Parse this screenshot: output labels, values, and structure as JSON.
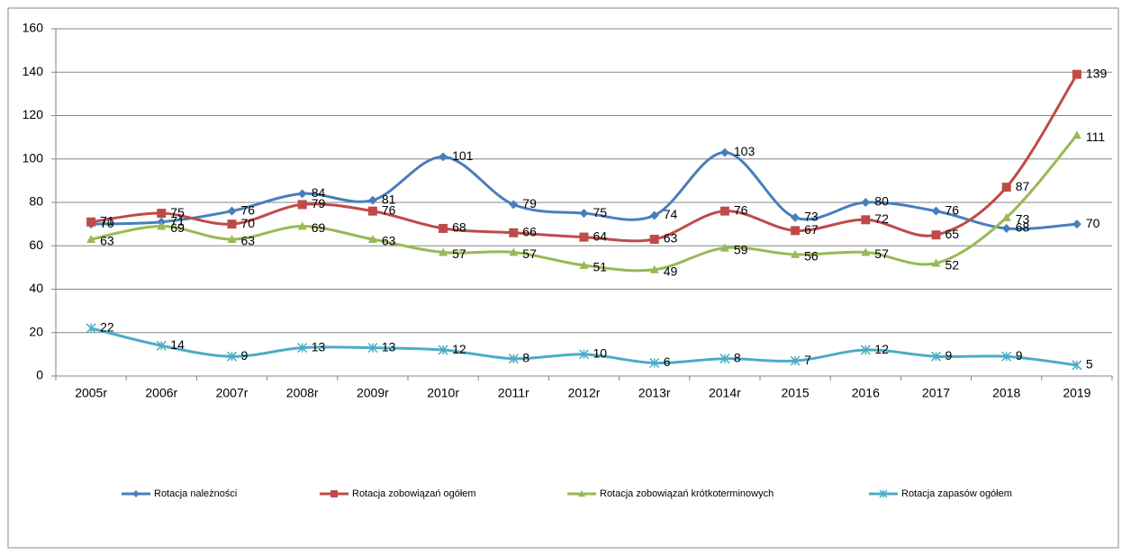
{
  "chart_data": {
    "type": "line",
    "categories": [
      "2005r",
      "2006r",
      "2007r",
      "2008r",
      "2009r",
      "2010r",
      "2011r",
      "2012r",
      "2013r",
      "2014r",
      "2015",
      "2016",
      "2017",
      "2018",
      "2019"
    ],
    "ylim": [
      0,
      160
    ],
    "yticks": [
      0,
      20,
      40,
      60,
      80,
      100,
      120,
      140,
      160
    ],
    "grid": true,
    "smooth": true,
    "legend": "bottom",
    "series": [
      {
        "name": "Rotacja należności",
        "color": "#4a7ebb",
        "label_color": "#0070c0",
        "marker": "diamond",
        "values": [
          70,
          71,
          76,
          84,
          81,
          101,
          79,
          75,
          74,
          103,
          73,
          80,
          76,
          68,
          70
        ]
      },
      {
        "name": "Rotacja zobowiązań ogółem",
        "color": "#be4b48",
        "label_color": "#ff0000",
        "marker": "square",
        "values": [
          71,
          75,
          70,
          79,
          76,
          68,
          66,
          64,
          63,
          76,
          67,
          72,
          65,
          87,
          139
        ]
      },
      {
        "name": "Rotacja zobowiązań krótkoterminowych",
        "color": "#98b954",
        "label_color": "#3b3b00",
        "marker": "triangle",
        "values": [
          63,
          69,
          63,
          69,
          63,
          57,
          57,
          51,
          49,
          59,
          56,
          57,
          52,
          73,
          111
        ]
      },
      {
        "name": "Rotacja zapasów ogółem",
        "color": "#4bacc6",
        "label_color": "#0070c0",
        "marker": "star",
        "values": [
          22,
          14,
          9,
          13,
          13,
          12,
          8,
          10,
          6,
          8,
          7,
          12,
          9,
          9,
          5
        ]
      }
    ]
  }
}
